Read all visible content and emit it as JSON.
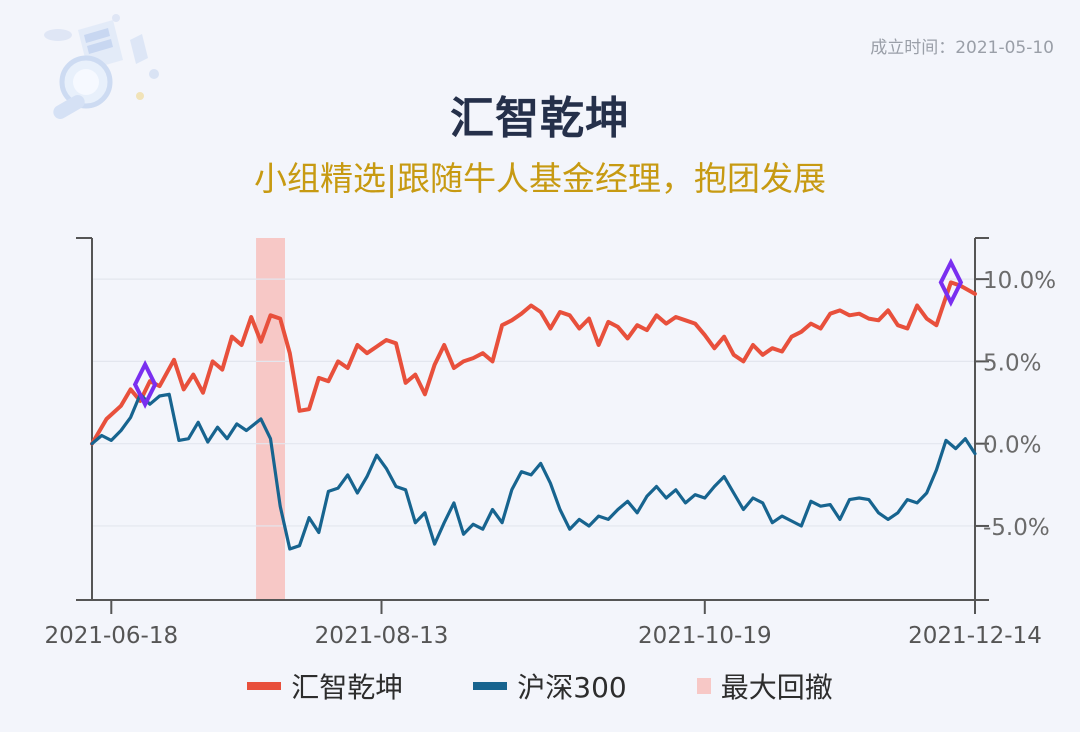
{
  "header": {
    "founded_label": "成立时间：2021-05-10",
    "title": "汇智乾坤",
    "subtitle": "小组精选|跟随牛人基金经理，抱团发展"
  },
  "colors": {
    "fund": "#e8503c",
    "index": "#17648f",
    "drawdown": "#f7c8c6",
    "marker": "#7a2ff0",
    "title": "#25304a",
    "subtitle": "#c79a12"
  },
  "legend": [
    {
      "label": "汇智乾坤",
      "color": "#e8503c"
    },
    {
      "label": "沪深300",
      "color": "#17648f"
    },
    {
      "label": "最大回撤",
      "color": "#f7c8c6"
    }
  ],
  "chart_data": {
    "type": "line",
    "x_start": "2021-06-14",
    "x_end": "2021-12-14",
    "x_ticks": [
      "2021-06-18",
      "2021-08-13",
      "2021-10-19",
      "2021-12-14"
    ],
    "y_ticks": [
      "10.0%",
      "5.0%",
      "0.0%",
      "-5.0%"
    ],
    "ylim": [
      -9.5,
      12.5
    ],
    "y_axis_position": "right",
    "max_drawdown_range": [
      "2021-07-18",
      "2021-07-24"
    ],
    "markers": [
      {
        "date": "2021-06-25",
        "value": 3.6
      },
      {
        "date": "2021-12-09",
        "value": 9.8
      }
    ],
    "series": [
      {
        "name": "汇智乾坤",
        "points": [
          [
            "2021-06-14",
            0.0
          ],
          [
            "2021-06-17",
            1.5
          ],
          [
            "2021-06-20",
            2.3
          ],
          [
            "2021-06-22",
            3.3
          ],
          [
            "2021-06-24",
            2.6
          ],
          [
            "2021-06-26",
            3.8
          ],
          [
            "2021-06-28",
            3.5
          ],
          [
            "2021-07-01",
            5.1
          ],
          [
            "2021-07-03",
            3.3
          ],
          [
            "2021-07-05",
            4.2
          ],
          [
            "2021-07-07",
            3.1
          ],
          [
            "2021-07-09",
            5.0
          ],
          [
            "2021-07-11",
            4.5
          ],
          [
            "2021-07-13",
            6.5
          ],
          [
            "2021-07-15",
            6.0
          ],
          [
            "2021-07-17",
            7.7
          ],
          [
            "2021-07-19",
            6.2
          ],
          [
            "2021-07-21",
            7.8
          ],
          [
            "2021-07-23",
            7.6
          ],
          [
            "2021-07-25",
            5.5
          ],
          [
            "2021-07-27",
            2.0
          ],
          [
            "2021-07-29",
            2.1
          ],
          [
            "2021-07-31",
            4.0
          ],
          [
            "2021-08-02",
            3.8
          ],
          [
            "2021-08-04",
            5.0
          ],
          [
            "2021-08-06",
            4.6
          ],
          [
            "2021-08-08",
            6.0
          ],
          [
            "2021-08-10",
            5.5
          ],
          [
            "2021-08-12",
            5.9
          ],
          [
            "2021-08-14",
            6.3
          ],
          [
            "2021-08-16",
            6.1
          ],
          [
            "2021-08-18",
            3.7
          ],
          [
            "2021-08-20",
            4.2
          ],
          [
            "2021-08-22",
            3.0
          ],
          [
            "2021-08-24",
            4.8
          ],
          [
            "2021-08-26",
            6.0
          ],
          [
            "2021-08-28",
            4.6
          ],
          [
            "2021-08-30",
            5.0
          ],
          [
            "2021-09-01",
            5.2
          ],
          [
            "2021-09-03",
            5.5
          ],
          [
            "2021-09-05",
            5.0
          ],
          [
            "2021-09-07",
            7.2
          ],
          [
            "2021-09-09",
            7.5
          ],
          [
            "2021-09-11",
            7.9
          ],
          [
            "2021-09-13",
            8.4
          ],
          [
            "2021-09-15",
            8.0
          ],
          [
            "2021-09-17",
            7.0
          ],
          [
            "2021-09-19",
            8.0
          ],
          [
            "2021-09-21",
            7.8
          ],
          [
            "2021-09-23",
            7.0
          ],
          [
            "2021-09-25",
            7.6
          ],
          [
            "2021-09-27",
            6.0
          ],
          [
            "2021-09-29",
            7.4
          ],
          [
            "2021-10-01",
            7.1
          ],
          [
            "2021-10-03",
            6.4
          ],
          [
            "2021-10-05",
            7.2
          ],
          [
            "2021-10-07",
            6.9
          ],
          [
            "2021-10-09",
            7.8
          ],
          [
            "2021-10-11",
            7.3
          ],
          [
            "2021-10-13",
            7.7
          ],
          [
            "2021-10-15",
            7.5
          ],
          [
            "2021-10-17",
            7.3
          ],
          [
            "2021-10-19",
            6.6
          ],
          [
            "2021-10-21",
            5.8
          ],
          [
            "2021-10-23",
            6.5
          ],
          [
            "2021-10-25",
            5.4
          ],
          [
            "2021-10-27",
            5.0
          ],
          [
            "2021-10-29",
            6.0
          ],
          [
            "2021-10-31",
            5.4
          ],
          [
            "2021-11-02",
            5.8
          ],
          [
            "2021-11-04",
            5.6
          ],
          [
            "2021-11-06",
            6.5
          ],
          [
            "2021-11-08",
            6.8
          ],
          [
            "2021-11-10",
            7.3
          ],
          [
            "2021-11-12",
            7.0
          ],
          [
            "2021-11-14",
            7.9
          ],
          [
            "2021-11-16",
            8.1
          ],
          [
            "2021-11-18",
            7.8
          ],
          [
            "2021-11-20",
            7.9
          ],
          [
            "2021-11-22",
            7.6
          ],
          [
            "2021-11-24",
            7.5
          ],
          [
            "2021-11-26",
            8.1
          ],
          [
            "2021-11-28",
            7.2
          ],
          [
            "2021-11-30",
            7.0
          ],
          [
            "2021-12-02",
            8.4
          ],
          [
            "2021-12-04",
            7.6
          ],
          [
            "2021-12-06",
            7.2
          ],
          [
            "2021-12-09",
            9.8
          ],
          [
            "2021-12-11",
            9.6
          ],
          [
            "2021-12-14",
            9.1
          ]
        ]
      },
      {
        "name": "沪深300",
        "points": [
          [
            "2021-06-14",
            0.0
          ],
          [
            "2021-06-16",
            0.5
          ],
          [
            "2021-06-18",
            0.2
          ],
          [
            "2021-06-20",
            0.8
          ],
          [
            "2021-06-22",
            1.6
          ],
          [
            "2021-06-24",
            3.0
          ],
          [
            "2021-06-26",
            2.4
          ],
          [
            "2021-06-28",
            2.9
          ],
          [
            "2021-06-30",
            3.0
          ],
          [
            "2021-07-02",
            0.2
          ],
          [
            "2021-07-04",
            0.3
          ],
          [
            "2021-07-06",
            1.3
          ],
          [
            "2021-07-08",
            0.1
          ],
          [
            "2021-07-10",
            1.0
          ],
          [
            "2021-07-12",
            0.3
          ],
          [
            "2021-07-14",
            1.2
          ],
          [
            "2021-07-16",
            0.8
          ],
          [
            "2021-07-19",
            1.5
          ],
          [
            "2021-07-21",
            0.3
          ],
          [
            "2021-07-23",
            -3.8
          ],
          [
            "2021-07-25",
            -6.4
          ],
          [
            "2021-07-27",
            -6.2
          ],
          [
            "2021-07-29",
            -4.5
          ],
          [
            "2021-07-31",
            -5.4
          ],
          [
            "2021-08-02",
            -2.9
          ],
          [
            "2021-08-04",
            -2.7
          ],
          [
            "2021-08-06",
            -1.9
          ],
          [
            "2021-08-08",
            -3.0
          ],
          [
            "2021-08-10",
            -2.0
          ],
          [
            "2021-08-12",
            -0.7
          ],
          [
            "2021-08-14",
            -1.5
          ],
          [
            "2021-08-16",
            -2.6
          ],
          [
            "2021-08-18",
            -2.8
          ],
          [
            "2021-08-20",
            -4.8
          ],
          [
            "2021-08-22",
            -4.2
          ],
          [
            "2021-08-24",
            -6.1
          ],
          [
            "2021-08-26",
            -4.8
          ],
          [
            "2021-08-28",
            -3.6
          ],
          [
            "2021-08-30",
            -5.5
          ],
          [
            "2021-09-01",
            -4.9
          ],
          [
            "2021-09-03",
            -5.2
          ],
          [
            "2021-09-05",
            -4.0
          ],
          [
            "2021-09-07",
            -4.8
          ],
          [
            "2021-09-09",
            -2.8
          ],
          [
            "2021-09-11",
            -1.7
          ],
          [
            "2021-09-13",
            -1.9
          ],
          [
            "2021-09-15",
            -1.2
          ],
          [
            "2021-09-17",
            -2.4
          ],
          [
            "2021-09-19",
            -4.0
          ],
          [
            "2021-09-21",
            -5.2
          ],
          [
            "2021-09-23",
            -4.6
          ],
          [
            "2021-09-25",
            -5.0
          ],
          [
            "2021-09-27",
            -4.4
          ],
          [
            "2021-09-29",
            -4.6
          ],
          [
            "2021-10-01",
            -4.0
          ],
          [
            "2021-10-03",
            -3.5
          ],
          [
            "2021-10-05",
            -4.2
          ],
          [
            "2021-10-07",
            -3.2
          ],
          [
            "2021-10-09",
            -2.6
          ],
          [
            "2021-10-11",
            -3.3
          ],
          [
            "2021-10-13",
            -2.8
          ],
          [
            "2021-10-15",
            -3.6
          ],
          [
            "2021-10-17",
            -3.1
          ],
          [
            "2021-10-19",
            -3.3
          ],
          [
            "2021-10-21",
            -2.6
          ],
          [
            "2021-10-23",
            -2.0
          ],
          [
            "2021-10-25",
            -3.0
          ],
          [
            "2021-10-27",
            -4.0
          ],
          [
            "2021-10-29",
            -3.3
          ],
          [
            "2021-10-31",
            -3.6
          ],
          [
            "2021-11-02",
            -4.8
          ],
          [
            "2021-11-04",
            -4.4
          ],
          [
            "2021-11-06",
            -4.7
          ],
          [
            "2021-11-08",
            -5.0
          ],
          [
            "2021-11-10",
            -3.5
          ],
          [
            "2021-11-12",
            -3.8
          ],
          [
            "2021-11-14",
            -3.7
          ],
          [
            "2021-11-16",
            -4.6
          ],
          [
            "2021-11-18",
            -3.4
          ],
          [
            "2021-11-20",
            -3.3
          ],
          [
            "2021-11-22",
            -3.4
          ],
          [
            "2021-11-24",
            -4.2
          ],
          [
            "2021-11-26",
            -4.6
          ],
          [
            "2021-11-28",
            -4.2
          ],
          [
            "2021-11-30",
            -3.4
          ],
          [
            "2021-12-02",
            -3.6
          ],
          [
            "2021-12-04",
            -3.0
          ],
          [
            "2021-12-06",
            -1.6
          ],
          [
            "2021-12-08",
            0.2
          ],
          [
            "2021-12-10",
            -0.3
          ],
          [
            "2021-12-12",
            0.3
          ],
          [
            "2021-12-14",
            -0.6
          ]
        ]
      }
    ]
  }
}
